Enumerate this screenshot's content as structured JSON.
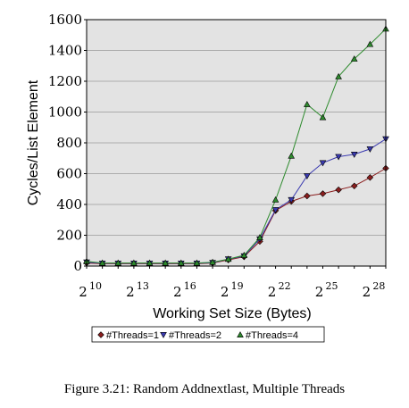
{
  "caption": "Figure 3.21: Random Addnextlast, Multiple Threads",
  "chart_data": {
    "type": "line",
    "title": "",
    "xlabel": "Working Set Size (Bytes)",
    "ylabel": "Cycles/List Element",
    "x_base": 2,
    "x_exponents": [
      10,
      11,
      12,
      13,
      14,
      15,
      16,
      17,
      18,
      19,
      20,
      21,
      22,
      23,
      24,
      25,
      26,
      27,
      28,
      29
    ],
    "x_tick_exponents": [
      10,
      13,
      16,
      19,
      22,
      25,
      28
    ],
    "ylim": [
      0,
      1600
    ],
    "y_ticks": [
      0,
      200,
      400,
      600,
      800,
      1000,
      1200,
      1400,
      1600
    ],
    "grid": true,
    "legend_position": "bottom",
    "series": [
      {
        "name": "#Threads=1",
        "color": "#8b1e1e",
        "marker": "diamond",
        "values": [
          20,
          15,
          15,
          15,
          15,
          15,
          15,
          15,
          20,
          40,
          60,
          160,
          360,
          420,
          455,
          470,
          495,
          520,
          575,
          635
        ]
      },
      {
        "name": "#Threads=2",
        "color": "#3a3ab0",
        "marker": "triangle-down",
        "values": [
          25,
          18,
          18,
          18,
          18,
          18,
          18,
          18,
          22,
          45,
          65,
          175,
          365,
          430,
          585,
          670,
          710,
          725,
          760,
          825
        ]
      },
      {
        "name": "#Threads=4",
        "color": "#2e8b2e",
        "marker": "triangle-up",
        "values": [
          30,
          20,
          20,
          20,
          20,
          20,
          20,
          20,
          25,
          45,
          70,
          185,
          430,
          715,
          1050,
          965,
          1230,
          1345,
          1440,
          1540
        ]
      }
    ]
  }
}
